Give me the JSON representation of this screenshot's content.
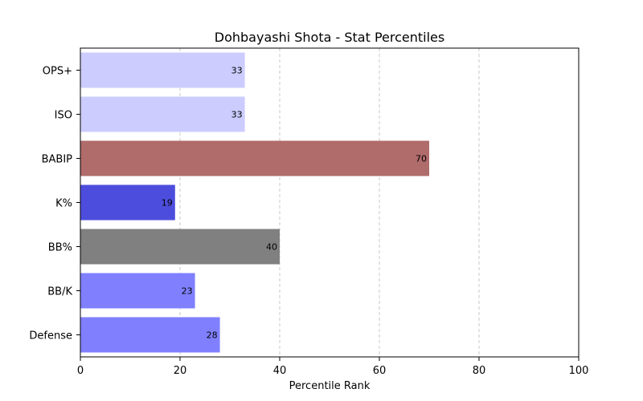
{
  "chart_data": {
    "type": "bar",
    "orientation": "horizontal",
    "title": "Dohbayashi Shota - Stat Percentiles",
    "xlabel": "Percentile Rank",
    "ylabel": "",
    "xlim": [
      0,
      100
    ],
    "xticks": [
      0,
      20,
      40,
      60,
      80,
      100
    ],
    "grid": "x-dashed",
    "categories": [
      "OPS+",
      "ISO",
      "BABIP",
      "K%",
      "BB%",
      "BB/K",
      "Defense"
    ],
    "values": [
      33,
      33,
      70,
      19,
      40,
      23,
      28
    ],
    "colors": [
      "#ccccff",
      "#ccccff",
      "#b06b6b",
      "#4d4ddd",
      "#808080",
      "#8080ff",
      "#8080ff"
    ]
  }
}
